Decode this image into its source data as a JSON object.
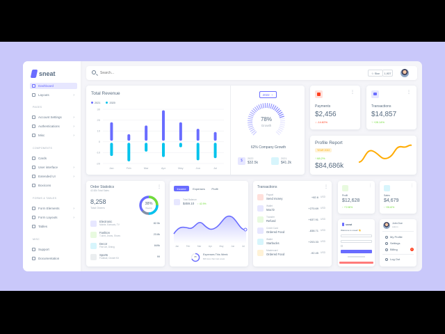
{
  "brand": {
    "name": "sneat",
    "accent": "#696cff"
  },
  "sidebar": {
    "items": [
      {
        "label": "Dashboard",
        "icon": "home-icon"
      },
      {
        "label": "Layouts",
        "icon": "layout-icon"
      },
      {
        "label": "Account Settings",
        "icon": "dock-icon"
      },
      {
        "label": "Authentications",
        "icon": "lock-icon"
      },
      {
        "label": "Misc",
        "icon": "cube-icon"
      },
      {
        "label": "Cards",
        "icon": "collection-icon"
      },
      {
        "label": "User interface",
        "icon": "box-icon"
      },
      {
        "label": "Extended UI",
        "icon": "copy-icon"
      },
      {
        "label": "Boxicons",
        "icon": "crown-icon"
      },
      {
        "label": "Form Elements",
        "icon": "detail-icon"
      },
      {
        "label": "Form Layouts",
        "icon": "detail-icon"
      },
      {
        "label": "Tables",
        "icon": "table-icon"
      },
      {
        "label": "Support",
        "icon": "support-icon"
      },
      {
        "label": "Documentation",
        "icon": "file-icon"
      }
    ],
    "sections": [
      "PAGES",
      "COMPONENTS",
      "FORMS & TABLES",
      "MISC"
    ]
  },
  "topbar": {
    "search_placeholder": "Search...",
    "star_label": "Star",
    "star_count": "1,937"
  },
  "revenue": {
    "title": "Total Revenue",
    "legend": [
      "2021",
      "2020"
    ],
    "year_select": "2022",
    "gauge_value": "78%",
    "gauge_label": "Growth",
    "growth_text": "62% Company Growth",
    "stat1_year": "2022",
    "stat1_value": "$32.5k",
    "stat2_year": "2021",
    "stat2_value": "$41.2k"
  },
  "chart_data": {
    "type": "bar",
    "categories": [
      "Jan",
      "Feb",
      "Mar",
      "Apr",
      "May",
      "Jun",
      "Jul"
    ],
    "ylim": [
      -20,
      30
    ],
    "yticks": [
      "30",
      "20",
      "10",
      "0",
      "-10",
      "-20"
    ],
    "series": [
      {
        "name": "2021",
        "color": "#696cff",
        "values": [
          18,
          7,
          15,
          29,
          18,
          12,
          9
        ]
      },
      {
        "name": "2020",
        "color": "#03c3ec",
        "values": [
          -13,
          -18,
          -9,
          -14,
          -5,
          -17,
          -15
        ]
      }
    ]
  },
  "payments": {
    "label": "Payments",
    "value": "$2,456",
    "delta": "-14.82%"
  },
  "transactions_stat": {
    "label": "Transactions",
    "value": "$14,857",
    "delta": "+28.14%"
  },
  "profile": {
    "title": "Profile Report",
    "badge": "YEAR 2022",
    "delta": "68.2%",
    "value": "$84,686k"
  },
  "order_stats": {
    "title": "Order Statistics",
    "subtitle": "42.82k Total Sales",
    "total": "8,258",
    "total_label": "Total Orders",
    "donut_pct": "38%",
    "donut_label": "Weekly",
    "rows": [
      {
        "name": "Electronic",
        "desc": "Mobile, Earbuds, TV",
        "value": "82.5k",
        "color": "#e7e7ff"
      },
      {
        "name": "Fashion",
        "desc": "T-shirt, Jeans, Shoes",
        "value": "23.8k",
        "color": "#e8fadf"
      },
      {
        "name": "Decor",
        "desc": "Fine Art, Dining",
        "value": "849k",
        "color": "#d7f5fc"
      },
      {
        "name": "Sports",
        "desc": "Football, Cricket Kit",
        "value": "99",
        "color": "#ebeef0"
      }
    ]
  },
  "income": {
    "tabs": [
      "Income",
      "Expenses",
      "Profit"
    ],
    "label": "Total Balance",
    "value": "$459.10",
    "delta": "42.9%",
    "months": [
      "Jan",
      "Feb",
      "Mar",
      "Apr",
      "May",
      "Jun",
      "Jul"
    ],
    "expense_title": "Expenses This Week",
    "expense_sub": "$39 less than last week",
    "expense_pct": "65"
  },
  "transactions": {
    "title": "Transactions",
    "rows": [
      {
        "cat": "Paypal",
        "name": "Send money",
        "amount": "+82.6",
        "unit": "USD",
        "color": "#ffe0db"
      },
      {
        "cat": "Wallet",
        "name": "Mac'D",
        "amount": "+270.69",
        "unit": "USD",
        "color": "#e7e7ff"
      },
      {
        "cat": "Transfer",
        "name": "Refund",
        "amount": "+637.91",
        "unit": "USD",
        "color": "#e8fadf"
      },
      {
        "cat": "Credit Card",
        "name": "Ordered Food",
        "amount": "-838.71",
        "unit": "USD",
        "color": "#e7e7ff"
      },
      {
        "cat": "Wallet",
        "name": "Starbucks",
        "amount": "+203.33",
        "unit": "USD",
        "color": "#d7f5fc"
      },
      {
        "cat": "Mastercard",
        "name": "Ordered Food",
        "amount": "-92.45",
        "unit": "USD",
        "color": "#fff2d6"
      }
    ]
  },
  "profit": {
    "label": "Profit",
    "value": "$12,628",
    "delta": "+72.80%"
  },
  "sales": {
    "label": "Sales",
    "value": "$4,679",
    "delta": "+28.42%"
  },
  "mini_login": {
    "brand": "sneat",
    "title": "Welcome to sneat! 👋"
  },
  "user_menu": {
    "name": "John Doe",
    "role": "Admin",
    "items": [
      "My Profile",
      "Settings",
      "Billing",
      "Log Out"
    ],
    "billing_badge": "4"
  }
}
